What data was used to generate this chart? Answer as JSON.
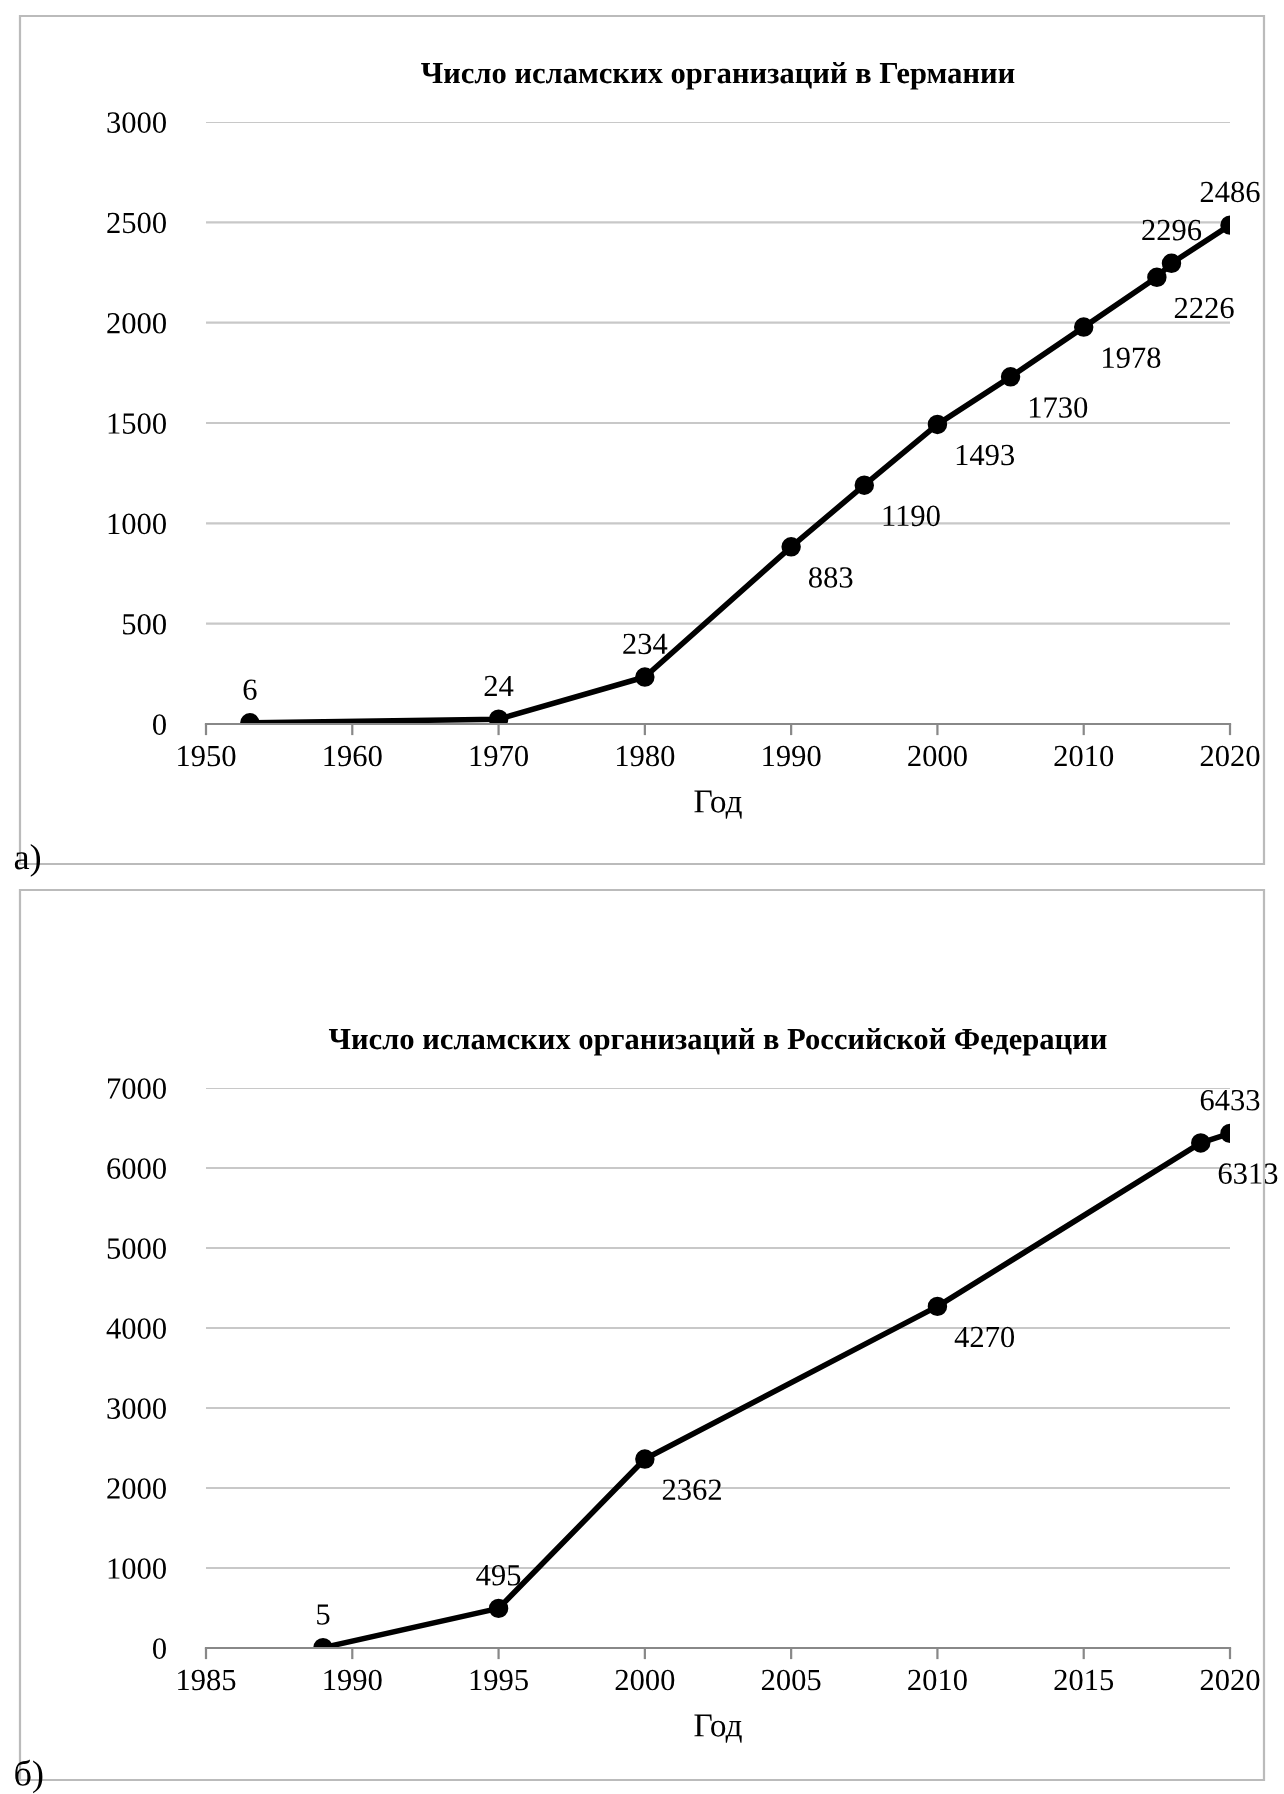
{
  "chart_data": [
    {
      "type": "line",
      "title": "Число исламских организаций в Германии",
      "xlabel": "Год",
      "x": [
        1953,
        1970,
        1980,
        1990,
        1995,
        2000,
        2005,
        2010,
        2015,
        2016,
        2020
      ],
      "series": [
        {
          "color": "#000000",
          "values": [
            6,
            24,
            234,
            883,
            1190,
            1493,
            1730,
            1978,
            2226,
            2296,
            2486
          ]
        }
      ],
      "xlim": [
        1950,
        2020
      ],
      "xticks": [
        1950,
        1960,
        1970,
        1980,
        1990,
        2000,
        2010,
        2020
      ],
      "ylim": [
        0,
        3000
      ],
      "yticks": [
        0,
        500,
        1000,
        1500,
        2000,
        2500,
        3000
      ],
      "grid": "y",
      "marker": "circle",
      "data_labels": true,
      "annotations": [
        "а)"
      ]
    },
    {
      "type": "line",
      "title": "Число исламских организаций в Российской Федерации",
      "xlabel": "Год",
      "x": [
        1989,
        1995,
        2000,
        2010,
        2019,
        2020
      ],
      "series": [
        {
          "color": "#000000",
          "values": [
            5,
            495,
            2362,
            4270,
            6313,
            6433
          ]
        }
      ],
      "xlim": [
        1985,
        2020
      ],
      "xticks": [
        1985,
        1990,
        1995,
        2000,
        2005,
        2010,
        2015,
        2020
      ],
      "ylim": [
        0,
        7000
      ],
      "yticks": [
        0,
        1000,
        2000,
        3000,
        4000,
        5000,
        6000,
        7000
      ],
      "grid": "y",
      "marker": "circle",
      "data_labels": true,
      "annotations": [
        "б)"
      ]
    }
  ]
}
